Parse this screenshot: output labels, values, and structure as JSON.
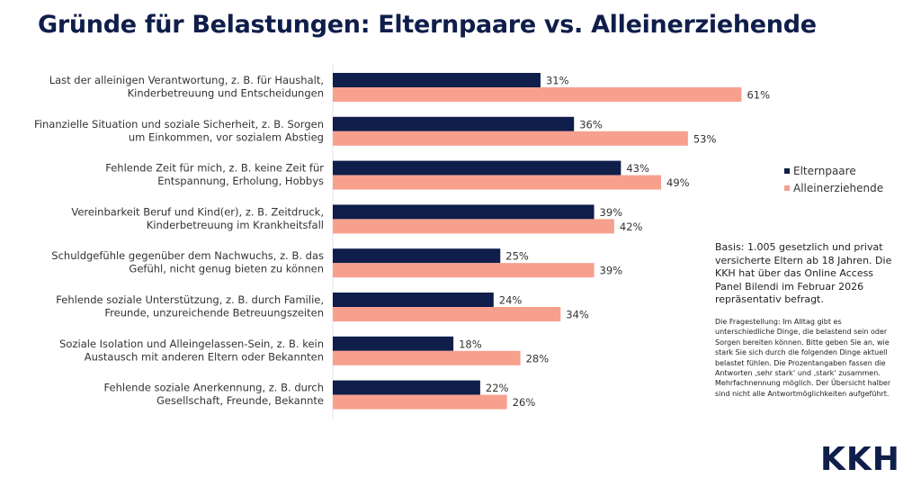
{
  "colors": {
    "elternpaare": "#0f1e4a",
    "alleinerziehende": "#f7a08e",
    "title": "#0f1e4a"
  },
  "chart_data": {
    "type": "bar",
    "orientation": "horizontal",
    "title": "Gründe für Belastungen: Elternpaare vs. Alleinerziehende",
    "categories": [
      [
        "Last der alleinigen Verantwortung, z. B. für Haushalt,",
        "Kinderbetreuung und Entscheidungen"
      ],
      [
        "Finanzielle Situation und soziale Sicherheit, z. B. Sorgen",
        "um Einkommen, vor sozialem Abstieg"
      ],
      [
        "Fehlende Zeit für mich, z. B. keine Zeit für",
        "Entspannung, Erholung, Hobbys"
      ],
      [
        "Vereinbarkeit Beruf und Kind(er), z. B. Zeitdruck,",
        "Kinderbetreuung im Krankheitsfall"
      ],
      [
        "Schuldgefühle gegenüber dem Nachwuchs, z. B. das",
        "Gefühl, nicht genug bieten zu können"
      ],
      [
        "Fehlende soziale Unterstützung, z. B. durch Familie,",
        "Freunde, unzureichende Betreuungszeiten"
      ],
      [
        "Soziale Isolation und Alleingelassen-Sein, z. B. kein",
        "Austausch mit anderen Eltern oder Bekannten"
      ],
      [
        "Fehlende soziale Anerkennung, z. B. durch",
        "Gesellschaft, Freunde, Bekannte"
      ]
    ],
    "series": [
      {
        "name": "Elternpaare",
        "values": [
          31,
          36,
          43,
          39,
          25,
          24,
          18,
          22
        ]
      },
      {
        "name": "Alleinerziehende",
        "values": [
          61,
          53,
          49,
          42,
          39,
          34,
          28,
          26
        ]
      }
    ],
    "value_suffix": "%",
    "xlim": [
      0,
      100
    ],
    "grid": false,
    "legend": "right"
  },
  "notes": {
    "basis": "Basis: 1.005 gesetzlich und privat versicherte Eltern ab 18 Jahren. Die KKH hat über das Online Access Panel Bilendi im Februar 2026 repräsentativ befragt.",
    "question": "Die Fragestellung: Im Alltag gibt es unterschiedliche Dinge, die belastend sein oder Sorgen bereiten können. Bitte geben Sie an, wie stark Sie sich durch die folgenden Dinge aktuell belastet fühlen. Die Prozentangaben fassen die Antworten ‚sehr stark‘ und ‚stark‘ zusammen. Mehrfachnennung möglich. Der Übersicht halber sind nicht alle Antwortmöglichkeiten aufgeführt."
  },
  "logo": "KKH"
}
